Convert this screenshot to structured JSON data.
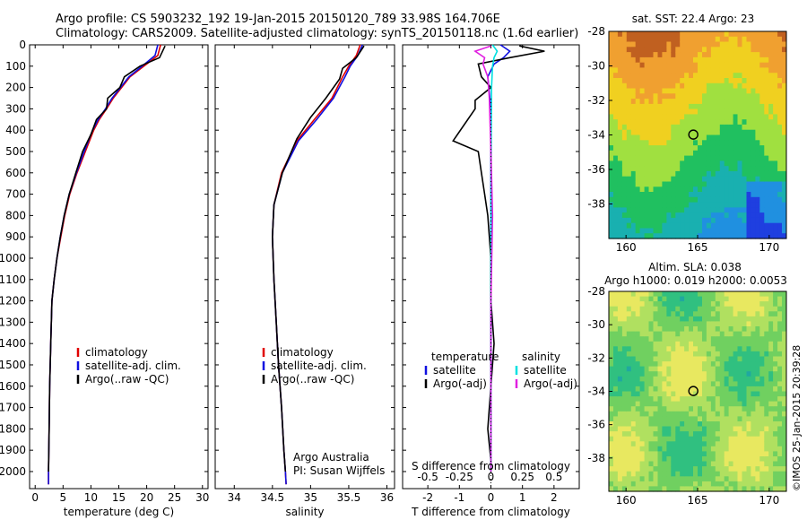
{
  "header": {
    "line1": "Argo profile: CS 5903232_192 19-Jan-2015 20150120_789 33.98S 164.706E",
    "line2": "Climatology: CARS2009. Satellite-adjusted climatology: synTS_20150118.nc (1.6d earlier)"
  },
  "footer_stamp": "©IMOS 25-Jan-2015 20:39:28",
  "colors": {
    "climatology": "#e00000",
    "satellite": "#1010e0",
    "argo": "#000000",
    "sal_satellite": "#00e0e0",
    "sal_argo": "#e020e0"
  },
  "chart_data": [
    {
      "type": "line",
      "panel": "temperature",
      "xlabel": "temperature (deg C)",
      "xlim": [
        -1,
        31
      ],
      "xticks": [
        0,
        5,
        10,
        15,
        20,
        25,
        30
      ],
      "ylim": [
        2080,
        0
      ],
      "yticks": [
        0,
        100,
        200,
        300,
        400,
        500,
        600,
        700,
        800,
        900,
        1000,
        1100,
        1200,
        1300,
        1400,
        1500,
        1600,
        1700,
        1800,
        1900,
        2000
      ],
      "legend": [
        "climatology",
        "satellite-adj. clim.",
        "Argo(..raw -QC)"
      ],
      "series": [
        {
          "key": "climatology",
          "x": [
            22.5,
            22.0,
            19.5,
            17.0,
            15.5,
            14.0,
            12.8,
            11.5,
            10.5,
            9.0,
            7.5,
            6.2,
            5.3,
            4.6,
            3.9,
            3.4,
            3.0,
            2.8,
            2.6,
            2.5,
            2.4,
            2.4
          ],
          "y": [
            0,
            50,
            100,
            150,
            200,
            250,
            300,
            350,
            400,
            500,
            600,
            700,
            800,
            900,
            1000,
            1100,
            1200,
            1400,
            1600,
            1800,
            2000,
            2060
          ]
        },
        {
          "key": "satellite",
          "x": [
            22.0,
            21.5,
            19.2,
            16.8,
            15.3,
            13.8,
            12.6,
            11.3,
            10.3,
            8.8,
            7.4,
            6.1,
            5.2,
            4.5,
            3.9,
            3.4,
            3.0,
            2.8,
            2.6,
            2.5,
            2.4,
            2.4
          ],
          "y": [
            0,
            50,
            100,
            150,
            200,
            250,
            300,
            350,
            400,
            500,
            600,
            700,
            800,
            900,
            1000,
            1100,
            1200,
            1400,
            1600,
            1800,
            2000,
            2060
          ]
        },
        {
          "key": "argo",
          "x": [
            23.3,
            22.3,
            18.8,
            16.0,
            15.2,
            13.0,
            12.8,
            11.0,
            10.0,
            8.5,
            7.3,
            6.1,
            5.2,
            4.5,
            3.9,
            3.4,
            3.0,
            2.8,
            2.6,
            2.5,
            2.4
          ],
          "y": [
            5,
            60,
            100,
            150,
            200,
            250,
            300,
            350,
            420,
            500,
            600,
            700,
            800,
            900,
            1000,
            1100,
            1200,
            1400,
            1600,
            1800,
            2000
          ]
        }
      ]
    },
    {
      "type": "line",
      "panel": "salinity",
      "xlabel": "salinity",
      "xlim": [
        33.75,
        36.1
      ],
      "xticks": [
        34,
        34.5,
        35,
        35.5,
        36
      ],
      "ylim": [
        2080,
        0
      ],
      "legend": [
        "climatology",
        "satellite-adj. clim.",
        "Argo(..raw -QC)"
      ],
      "annotations": [
        "Argo Australia",
        "PI: Susan Wijffels"
      ],
      "series": [
        {
          "key": "climatology",
          "x": [
            35.65,
            35.6,
            35.5,
            35.42,
            35.28,
            35.05,
            34.82,
            34.62,
            34.52,
            34.5,
            34.52,
            34.55,
            34.58,
            34.62,
            34.65,
            34.67,
            34.68
          ],
          "y": [
            0,
            50,
            100,
            150,
            250,
            350,
            450,
            600,
            750,
            900,
            1100,
            1300,
            1500,
            1700,
            1900,
            2000,
            2060
          ]
        },
        {
          "key": "satellite",
          "x": [
            35.68,
            35.62,
            35.52,
            35.45,
            35.3,
            35.08,
            34.84,
            34.63,
            34.52,
            34.5,
            34.52,
            34.55,
            34.58,
            34.62,
            34.65,
            34.67,
            34.68
          ],
          "y": [
            0,
            50,
            100,
            150,
            250,
            350,
            450,
            600,
            750,
            900,
            1100,
            1300,
            1500,
            1700,
            1900,
            2000,
            2060
          ]
        },
        {
          "key": "argo",
          "x": [
            35.7,
            35.6,
            35.42,
            35.38,
            35.2,
            35.0,
            34.82,
            34.63,
            34.52,
            34.5,
            34.52,
            34.55,
            34.58,
            34.62,
            34.65,
            34.67
          ],
          "y": [
            5,
            60,
            110,
            160,
            250,
            340,
            440,
            600,
            750,
            900,
            1100,
            1300,
            1500,
            1700,
            1900,
            2000
          ]
        }
      ]
    },
    {
      "type": "line",
      "panel": "difference",
      "xlabel": "T difference from climatology",
      "xlabel_top": "S difference from climatology",
      "xlim": [
        -2.8,
        2.8
      ],
      "xticks": [
        -2,
        -1,
        0,
        1,
        2
      ],
      "xticks_top": [
        -0.5,
        -0.25,
        0,
        0.25,
        0.5
      ],
      "ylim": [
        2080,
        0
      ],
      "legend_groups": [
        {
          "title": "temperature",
          "items": [
            "satellite",
            "Argo(-adj)"
          ]
        },
        {
          "title": "salinity",
          "items": [
            "satellite",
            "Argo(-adj)"
          ]
        }
      ],
      "series": [
        {
          "key": "temp_satellite",
          "x": [
            0.3,
            0.6,
            0.4,
            0.1,
            -0.1,
            0.0,
            0.0,
            0.0,
            0.0,
            0.0
          ],
          "y": [
            0,
            30,
            60,
            90,
            150,
            300,
            500,
            800,
            1200,
            2000
          ]
        },
        {
          "key": "temp_argo",
          "x": [
            0.9,
            1.7,
            0.6,
            -0.4,
            -0.3,
            0.0,
            -0.5,
            -0.5,
            -1.2,
            -0.4,
            -0.3,
            -0.2,
            -0.1,
            0.0,
            0.0,
            0.1,
            0.0,
            -0.1,
            0.0,
            0.0
          ],
          "y": [
            5,
            30,
            60,
            90,
            150,
            200,
            260,
            300,
            450,
            500,
            600,
            700,
            800,
            1000,
            1200,
            1400,
            1600,
            1800,
            1950,
            2000
          ]
        },
        {
          "key": "sal_satellite",
          "x": [
            0.05,
            0.2,
            0.1,
            0.05,
            0.02,
            0.01,
            0.0,
            0.0
          ],
          "y": [
            0,
            30,
            60,
            100,
            200,
            400,
            1000,
            2000
          ]
        },
        {
          "key": "sal_argo",
          "x": [
            0.0,
            -0.5,
            -0.2,
            -0.25,
            -0.1,
            -0.05,
            0.0,
            0.05,
            0.0,
            0.0,
            0.0
          ],
          "y": [
            5,
            30,
            60,
            90,
            150,
            250,
            500,
            800,
            1200,
            1600,
            2000
          ]
        }
      ]
    },
    {
      "type": "heatmap",
      "panel": "sst_map",
      "title": "sat. SST: 22.4  Argo: 23",
      "xlim": [
        158.8,
        171.2
      ],
      "ylim": [
        -40,
        -28
      ],
      "xticks": [
        160,
        165,
        170
      ],
      "yticks": [
        -28,
        -30,
        -32,
        -34,
        -36,
        -38
      ],
      "marker": {
        "lon": 164.7,
        "lat": -33.98
      }
    },
    {
      "type": "heatmap",
      "panel": "sla_map",
      "title": "Altim. SLA: 0.038",
      "subtitle": "Argo h1000: 0.019 h2000: 0.0053",
      "xlim": [
        158.8,
        171.2
      ],
      "ylim": [
        -40,
        -28
      ],
      "xticks": [
        160,
        165,
        170
      ],
      "yticks": [
        -28,
        -30,
        -32,
        -34,
        -36,
        -38
      ],
      "marker": {
        "lon": 164.7,
        "lat": -33.98
      }
    }
  ]
}
